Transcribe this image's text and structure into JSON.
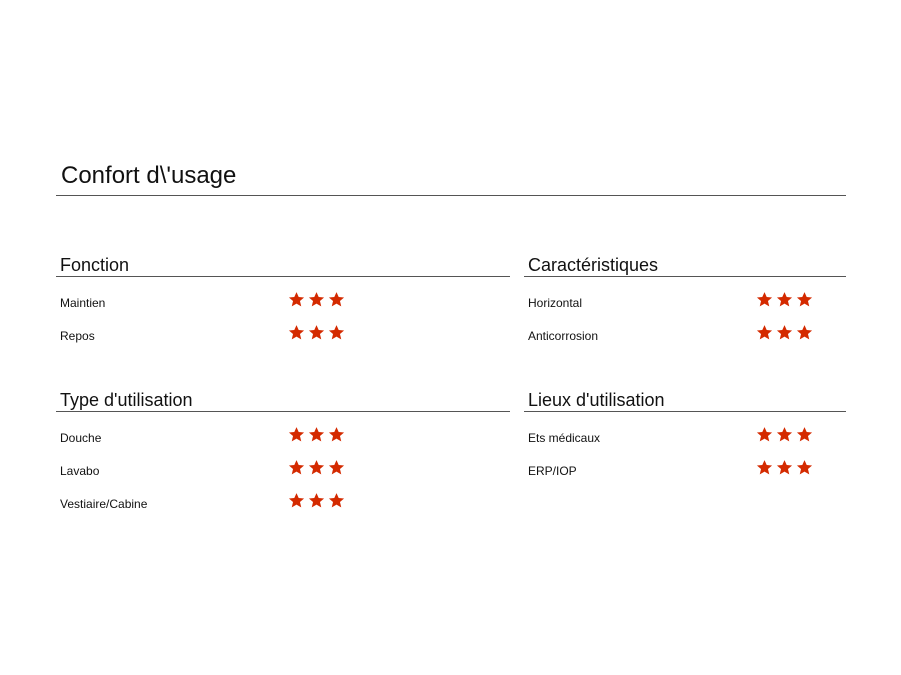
{
  "title": "Confort d\\'usage",
  "star_color": "#d42a00",
  "sections": [
    {
      "heading": "Fonction",
      "items": [
        {
          "label": "Maintien",
          "rating": 3
        },
        {
          "label": "Repos",
          "rating": 3
        }
      ]
    },
    {
      "heading": "Caractéristiques",
      "items": [
        {
          "label": "Horizontal",
          "rating": 3
        },
        {
          "label": "Anticorrosion",
          "rating": 3
        }
      ]
    },
    {
      "heading": "Type d'utilisation",
      "items": [
        {
          "label": "Douche",
          "rating": 3
        },
        {
          "label": "Lavabo",
          "rating": 3
        },
        {
          "label": "Vestiaire/Cabine",
          "rating": 3
        }
      ]
    },
    {
      "heading": "Lieux d'utilisation",
      "items": [
        {
          "label": "Ets médicaux",
          "rating": 3
        },
        {
          "label": "ERP/IOP",
          "rating": 3
        }
      ]
    }
  ]
}
